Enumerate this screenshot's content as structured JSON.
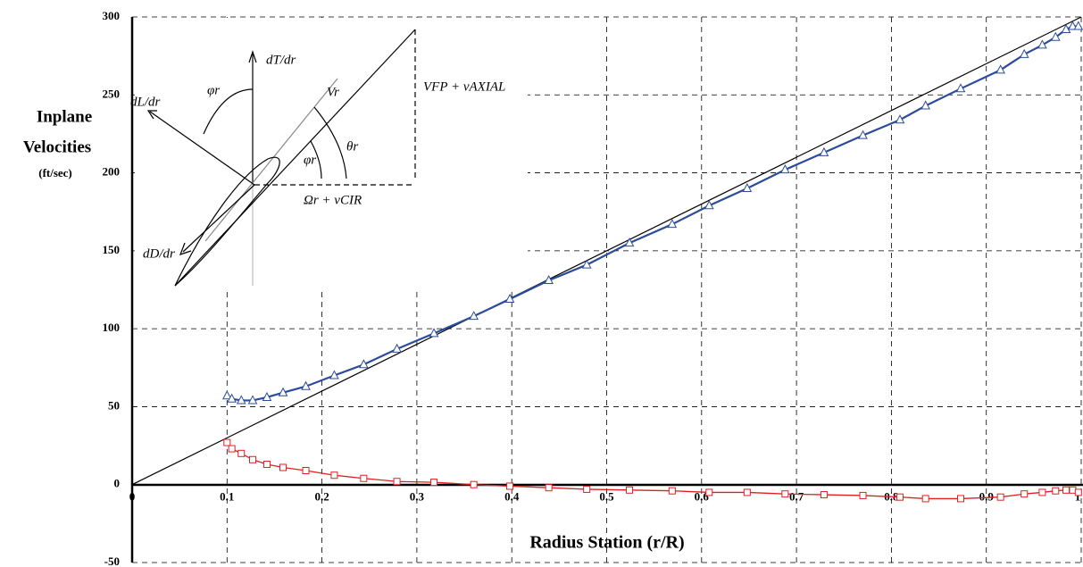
{
  "chart_data": {
    "type": "line",
    "ylabel": [
      "Inplane",
      "Velocities",
      "(ft/sec)"
    ],
    "xlabel": "Radius Station (r/R)",
    "xlim": [
      0,
      1
    ],
    "ylim": [
      -50,
      300
    ],
    "xticks": [
      0,
      0.1,
      0.2,
      0.3,
      0.4,
      0.5,
      0.6,
      0.7,
      0.8,
      0.9,
      1
    ],
    "yticks": [
      -50,
      0,
      50,
      100,
      150,
      200,
      250,
      300
    ],
    "grid": true,
    "annotations": [
      "dT/dr",
      "dL/dr",
      "φr",
      "Vr",
      "θr",
      "φr",
      "VFP + vAXIAL",
      "Ωr + vCIR",
      "dD/dr"
    ],
    "series": [
      {
        "color": "#000000",
        "marker": "none",
        "x": [
          0,
          1
        ],
        "values": [
          0,
          300
        ]
      },
      {
        "color": "#2b4c9b",
        "marker": "triangle",
        "x": [
          0.1,
          0.105,
          0.115,
          0.127,
          0.142,
          0.159,
          0.183,
          0.213,
          0.244,
          0.279,
          0.318,
          0.36,
          0.398,
          0.439,
          0.479,
          0.524,
          0.569,
          0.608,
          0.648,
          0.688,
          0.729,
          0.77,
          0.809,
          0.836,
          0.873,
          0.915,
          0.94,
          0.959,
          0.973,
          0.984,
          0.991,
          0.997
        ],
        "values": [
          57,
          55,
          54,
          54,
          56,
          59,
          63,
          70,
          77,
          87,
          97,
          108,
          119,
          131,
          141,
          155,
          167,
          179,
          190,
          202,
          213,
          224,
          234,
          243,
          254,
          266,
          276,
          282,
          287,
          292,
          294,
          294
        ]
      },
      {
        "color": "#e02020",
        "marker": "square",
        "x": [
          0.1,
          0.105,
          0.115,
          0.127,
          0.142,
          0.159,
          0.183,
          0.213,
          0.244,
          0.279,
          0.318,
          0.36,
          0.398,
          0.439,
          0.479,
          0.524,
          0.569,
          0.608,
          0.648,
          0.688,
          0.729,
          0.77,
          0.809,
          0.836,
          0.873,
          0.915,
          0.94,
          0.959,
          0.973,
          0.984,
          0.991,
          0.997
        ],
        "values": [
          27,
          23,
          20,
          16,
          13,
          11,
          9,
          6,
          4,
          2,
          1.5,
          0,
          -1,
          -2,
          -3,
          -3.5,
          -4,
          -5,
          -5,
          -6,
          -6.5,
          -7,
          -8,
          -9,
          -9,
          -8,
          -6,
          -5,
          -4,
          -3.5,
          -3.5,
          -5
        ]
      }
    ]
  }
}
